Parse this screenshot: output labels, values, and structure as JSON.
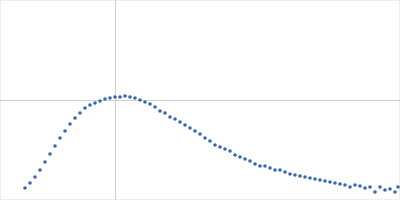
{
  "chart_data": {
    "type": "scatter",
    "x": [
      0.025,
      0.03,
      0.035,
      0.04,
      0.045,
      0.05,
      0.055,
      0.06,
      0.065,
      0.07,
      0.075,
      0.08,
      0.085,
      0.09,
      0.095,
      0.1,
      0.105,
      0.11,
      0.115,
      0.12,
      0.125,
      0.13,
      0.135,
      0.14,
      0.145,
      0.15,
      0.155,
      0.16,
      0.165,
      0.17,
      0.175,
      0.18,
      0.185,
      0.19,
      0.195,
      0.2,
      0.205,
      0.21,
      0.215,
      0.22,
      0.225,
      0.23,
      0.235,
      0.24,
      0.245,
      0.25,
      0.255,
      0.26,
      0.265,
      0.27,
      0.275,
      0.28,
      0.285,
      0.29,
      0.295,
      0.3,
      0.305,
      0.31,
      0.315,
      0.32,
      0.325,
      0.33,
      0.335,
      0.34,
      0.345,
      0.35,
      0.355,
      0.36,
      0.365,
      0.37,
      0.375,
      0.38,
      0.385,
      0.39,
      0.395,
      0.398
    ],
    "values": [
      0.12,
      0.17,
      0.23,
      0.3,
      0.38,
      0.46,
      0.54,
      0.62,
      0.69,
      0.76,
      0.82,
      0.87,
      0.92,
      0.95,
      0.97,
      0.99,
      1.01,
      1.02,
      1.03,
      1.03,
      1.04,
      1.03,
      1.02,
      1.0,
      0.98,
      0.96,
      0.93,
      0.89,
      0.87,
      0.83,
      0.81,
      0.78,
      0.75,
      0.72,
      0.69,
      0.66,
      0.62,
      0.59,
      0.55,
      0.53,
      0.51,
      0.49,
      0.45,
      0.43,
      0.41,
      0.39,
      0.36,
      0.34,
      0.34,
      0.32,
      0.3,
      0.3,
      0.28,
      0.26,
      0.25,
      0.24,
      0.23,
      0.22,
      0.21,
      0.2,
      0.19,
      0.18,
      0.17,
      0.16,
      0.15,
      0.13,
      0.15,
      0.14,
      0.12,
      0.13,
      0.08,
      0.13,
      0.1,
      0.11,
      0.08,
      0.13
    ],
    "color": "#3a68b0",
    "xlim": [
      0,
      0.4
    ],
    "ylim": [
      0,
      2
    ],
    "xticks": [
      0.115
    ],
    "yticks": [
      1
    ],
    "grid": true,
    "tick_labels": false,
    "marker": "circle"
  }
}
